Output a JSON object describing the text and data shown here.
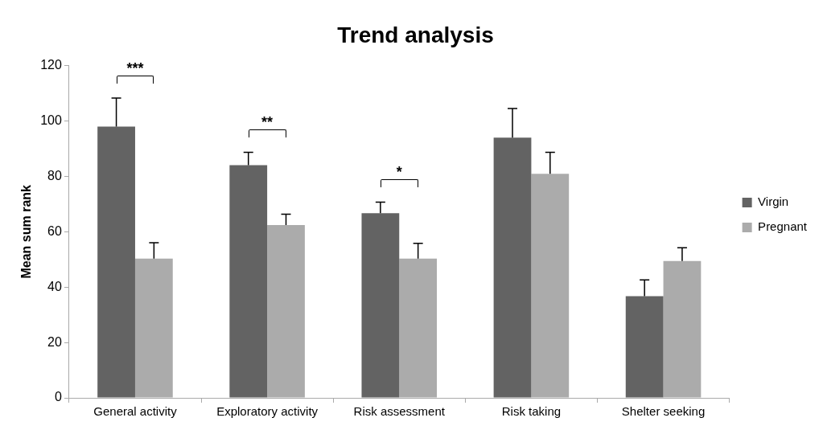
{
  "chart_data": {
    "type": "bar",
    "title": "Trend analysis",
    "ylabel": "Mean sum rank",
    "categories": [
      "General activity",
      "Exploratory activity",
      "Risk assessment",
      "Risk taking",
      "Shelter seeking"
    ],
    "series": [
      {
        "name": "Virgin",
        "color": "#636363",
        "values": [
          98,
          84,
          66.7,
          94,
          36.7
        ],
        "errors": [
          [
            98,
            108.3
          ],
          [
            84,
            88.7
          ],
          [
            66.7,
            70.7
          ],
          [
            94,
            104.5
          ],
          [
            36.7,
            42.6
          ]
        ]
      },
      {
        "name": "Pregnant",
        "color": "#ababab",
        "values": [
          50.3,
          62.4,
          50.3,
          80.9,
          49.4
        ],
        "errors": [
          [
            50.3,
            56
          ],
          [
            62.4,
            66.3
          ],
          [
            50.3,
            55.8
          ],
          [
            80.9,
            88.7
          ],
          [
            49.4,
            54.2
          ]
        ]
      }
    ],
    "ylim": [
      0,
      120
    ],
    "yticks": [
      0,
      20,
      40,
      60,
      80,
      100,
      120
    ],
    "grid": false,
    "legend": "right",
    "annotations": [
      "***",
      "**",
      "*"
    ]
  }
}
